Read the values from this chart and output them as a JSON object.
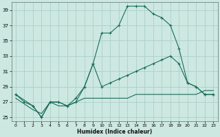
{
  "xlabel": "Humidex (Indice chaleur)",
  "xlim": [
    -0.5,
    23.5
  ],
  "ylim": [
    24.5,
    40
  ],
  "yticks": [
    25,
    27,
    29,
    31,
    33,
    35,
    37,
    39
  ],
  "xticks": [
    0,
    1,
    2,
    3,
    4,
    5,
    6,
    7,
    8,
    9,
    10,
    11,
    12,
    13,
    14,
    15,
    16,
    17,
    18,
    19,
    20,
    21,
    22,
    23
  ],
  "bg_color": "#cce8e0",
  "grid_color": "#aacfc8",
  "line_color": "#1a6b5a",
  "series": [
    {
      "x": [
        0,
        1,
        2,
        3,
        4,
        5,
        6,
        7,
        8,
        9,
        10,
        11,
        12,
        13,
        14,
        15,
        16,
        17,
        18,
        19,
        20,
        21,
        22,
        23
      ],
      "y": [
        28,
        27,
        26.5,
        25,
        27,
        27,
        26.5,
        27,
        29,
        32,
        36,
        36,
        37,
        39.5,
        39.5,
        39.5,
        38.5,
        38,
        37,
        34,
        29.5,
        29,
        28,
        28
      ],
      "markers": true
    },
    {
      "x": [
        0,
        2,
        3,
        4,
        5,
        6,
        7,
        8,
        9,
        10,
        11,
        12,
        13,
        14,
        15,
        16,
        17,
        18,
        19,
        20,
        21,
        22,
        23
      ],
      "y": [
        28,
        26.5,
        25,
        27,
        27,
        26.5,
        27.5,
        29,
        32,
        29,
        29.5,
        30,
        30.5,
        31,
        31.5,
        32,
        32.5,
        33,
        32,
        29.5,
        29,
        28,
        28
      ],
      "markers": true
    },
    {
      "x": [
        0,
        2,
        3,
        4,
        5,
        6,
        7,
        8,
        9,
        10,
        11,
        12,
        13,
        14,
        15,
        16,
        17,
        18,
        19,
        20,
        21,
        22,
        23
      ],
      "y": [
        27.5,
        26,
        25.5,
        27,
        26.5,
        26.5,
        27,
        27.5,
        27.5,
        27.5,
        27.5,
        27.5,
        27.5,
        28,
        28,
        28,
        28,
        28,
        28,
        28,
        28,
        28.5,
        28.5
      ],
      "markers": false
    }
  ]
}
